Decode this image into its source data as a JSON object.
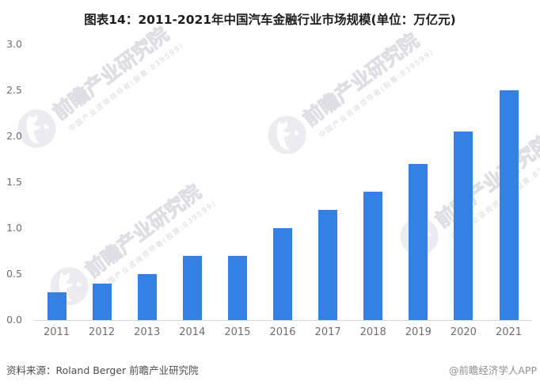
{
  "title": "图表14：2011-2021年中国汽车金融行业市场规模(单位：万亿元)",
  "chart_data": {
    "type": "bar",
    "title": "图表14：2011-2021年中国汽车金融行业市场规模(单位：万亿元)",
    "categories": [
      "2011",
      "2012",
      "2013",
      "2014",
      "2015",
      "2016",
      "2017",
      "2018",
      "2019",
      "2020",
      "2021"
    ],
    "values": [
      0.3,
      0.4,
      0.5,
      0.7,
      0.7,
      1.0,
      1.2,
      1.4,
      1.7,
      2.05,
      2.5
    ],
    "unit": "万亿元",
    "xlabel": "",
    "ylabel": "",
    "ylim": [
      0,
      3.0
    ],
    "yticks": [
      "0.0",
      "0.5",
      "1.0",
      "1.5",
      "2.0",
      "2.5",
      "3.0"
    ],
    "grid": false,
    "legend": "none",
    "bar_color": "#3381e4",
    "axis_line_color": "#d9d9d9",
    "tick_label_color": "#6e6e6e"
  },
  "watermark": {
    "logo_icon": "qianzhan-bird-logo",
    "text": "前瞻产业研究院",
    "subtext": "中国产业咨询领导者(股票:839599)"
  },
  "footer": {
    "source": "资料来源：Roland Berger 前瞻产业研究院",
    "credit": "@前瞻经济学人APP"
  }
}
